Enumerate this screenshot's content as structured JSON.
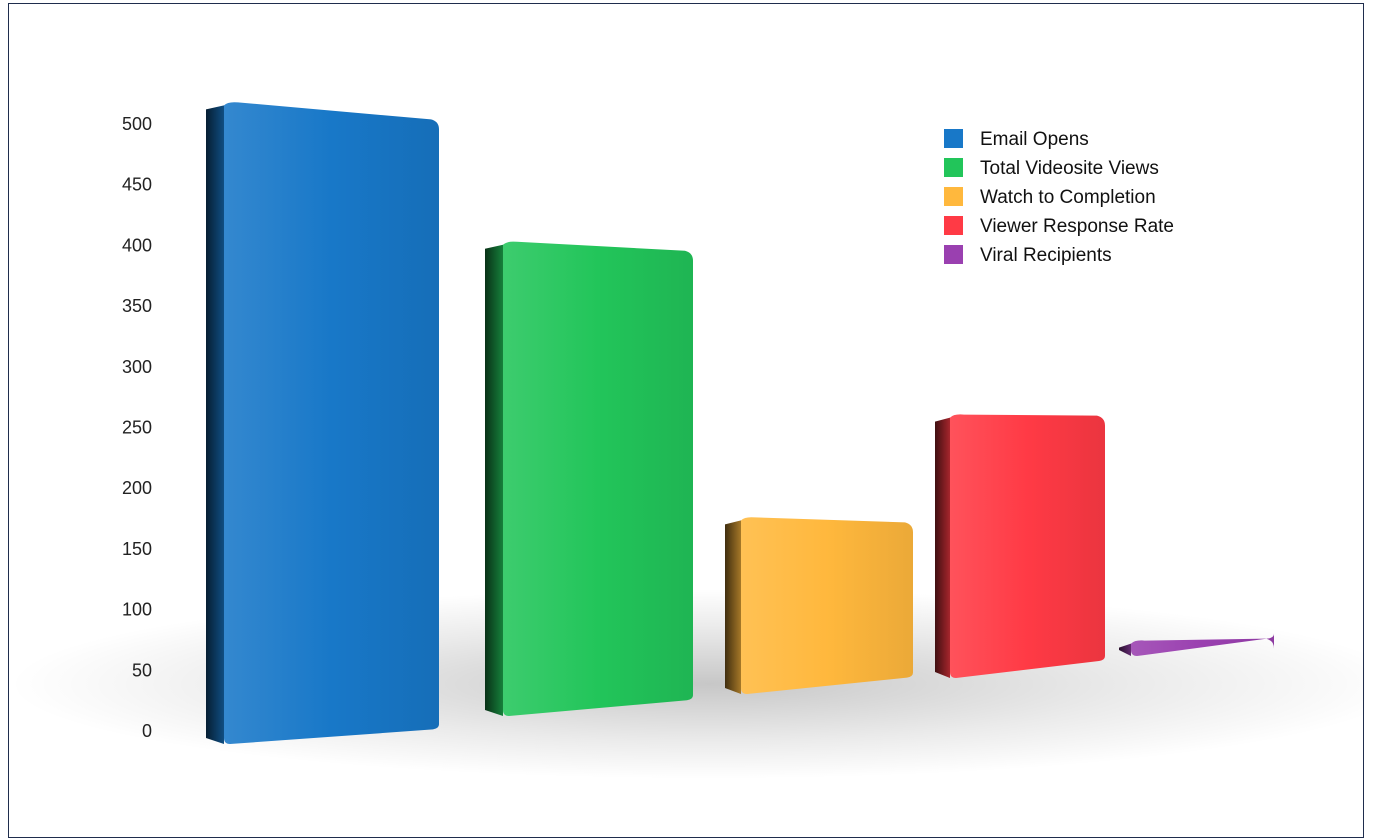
{
  "chart_data": {
    "type": "bar",
    "style": "3d",
    "title": "",
    "xlabel": "",
    "ylabel": "",
    "ylim": [
      0,
      500
    ],
    "yticks": [
      0,
      50,
      100,
      150,
      200,
      250,
      300,
      350,
      400,
      450,
      500
    ],
    "grid": false,
    "legend_position": "top-right",
    "series": [
      {
        "name": "Email Opens",
        "value": 515,
        "color": "#1878c8"
      },
      {
        "name": "Total Videosite Views",
        "value": 380,
        "color": "#22c55a"
      },
      {
        "name": "Watch to Completion",
        "value": 140,
        "color": "#ffb83d"
      },
      {
        "name": "Viewer Response Rate",
        "value": 210,
        "color": "#ff3a45"
      },
      {
        "name": "Viral Recipients",
        "value": 10,
        "color": "#9a40b0"
      }
    ]
  }
}
